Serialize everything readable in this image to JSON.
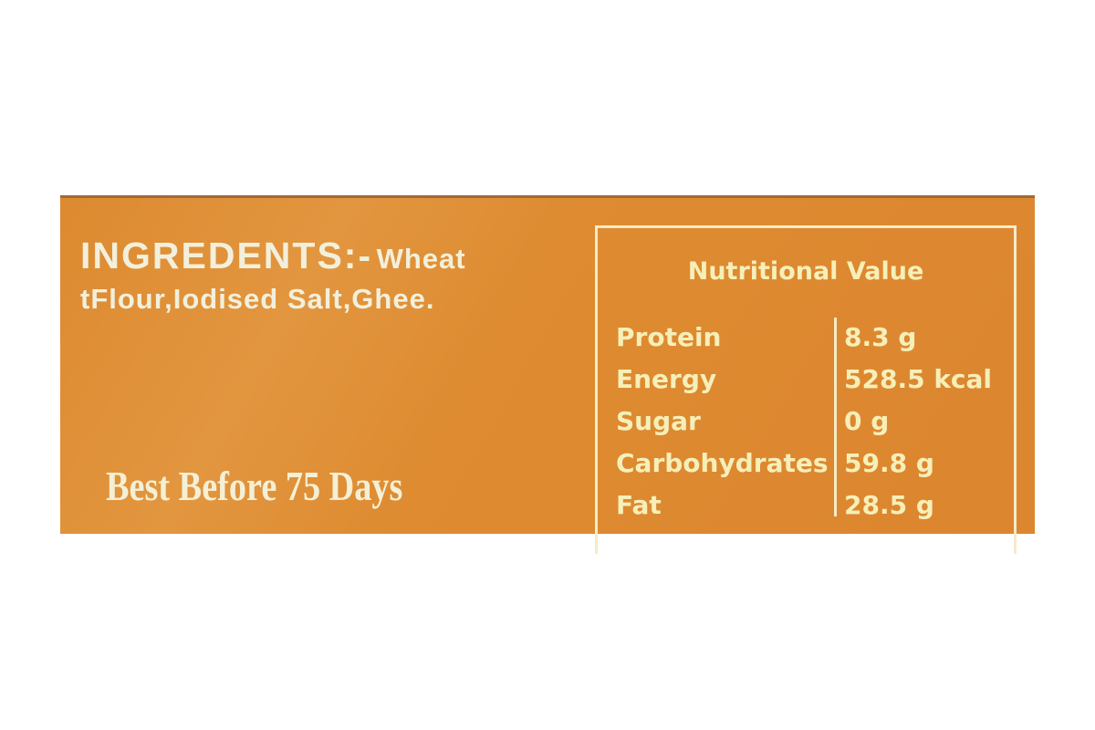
{
  "ingredients": {
    "heading": "INGREDENTS:-",
    "text_line1": "Wheat",
    "text_line2": "tFlour,Iodised Salt,Ghee."
  },
  "best_before": "Best Before 75 Days",
  "nutrition": {
    "title": "Nutritional Value",
    "rows": [
      {
        "name": "Protein",
        "value": "8.3 g"
      },
      {
        "name": "Energy",
        "value": "528.5 kcal"
      },
      {
        "name": "Sugar",
        "value": "0 g"
      },
      {
        "name": "Carbohydrates",
        "value": "59.8 g"
      },
      {
        "name": "Fat",
        "value": "28.5 g"
      }
    ]
  },
  "colors": {
    "label_background": "#de8b31",
    "text": "#f3efd0"
  }
}
